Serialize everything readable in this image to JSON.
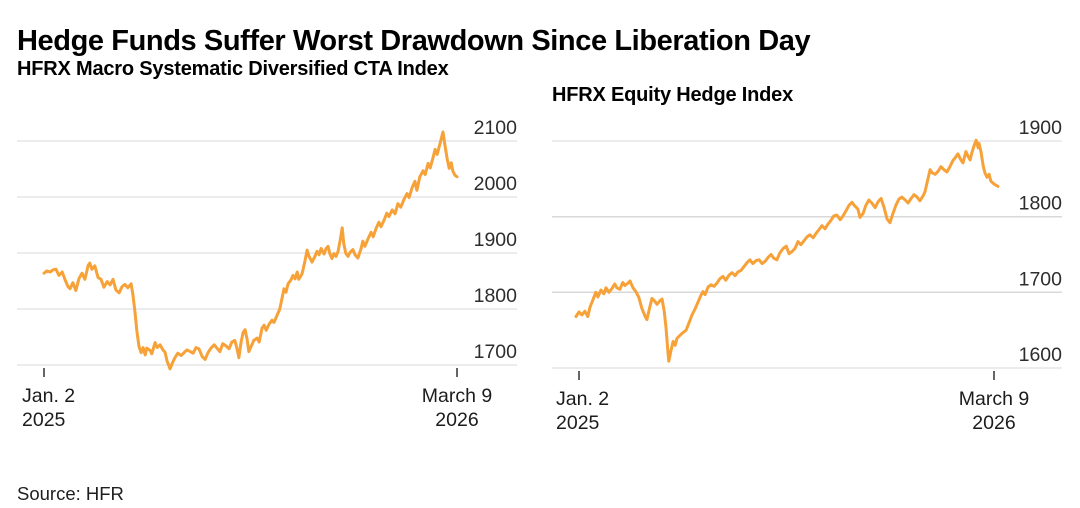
{
  "header": {
    "title": "Hedge Funds Suffer Worst Drawdown Since Liberation Day"
  },
  "source": {
    "label": "Source: HFR"
  },
  "colors": {
    "line": "#F7A139",
    "grid": "#D8D8D8",
    "tick": "#333333",
    "y_label": "#2D2D2D",
    "x_label": "#1C1C1C",
    "background": "#FFFFFF"
  },
  "chart_data": [
    {
      "id": "cta",
      "type": "line",
      "title": "HFRX Macro Systematic Diversified CTA Index",
      "legend": "none",
      "grid": "horizontal",
      "ylim": [
        1650,
        2150
      ],
      "y_gridlines": [
        2100,
        2000,
        1900,
        1800,
        1700
      ],
      "x_ticks": [
        {
          "line1": "Jan. 2",
          "line2": "2025",
          "align": "start"
        },
        {
          "line1": "March 9",
          "line2": "2026",
          "align": "middle"
        }
      ],
      "points": [
        [
          0.0,
          1864
        ],
        [
          0.007,
          1868
        ],
        [
          0.015,
          1866
        ],
        [
          0.022,
          1870
        ],
        [
          0.029,
          1871
        ],
        [
          0.036,
          1860
        ],
        [
          0.044,
          1866
        ],
        [
          0.051,
          1852
        ],
        [
          0.058,
          1840
        ],
        [
          0.063,
          1836
        ],
        [
          0.07,
          1847
        ],
        [
          0.077,
          1833
        ],
        [
          0.085,
          1855
        ],
        [
          0.092,
          1864
        ],
        [
          0.099,
          1853
        ],
        [
          0.107,
          1878
        ],
        [
          0.111,
          1882
        ],
        [
          0.116,
          1871
        ],
        [
          0.123,
          1877
        ],
        [
          0.131,
          1856
        ],
        [
          0.138,
          1853
        ],
        [
          0.145,
          1839
        ],
        [
          0.153,
          1849
        ],
        [
          0.16,
          1843
        ],
        [
          0.167,
          1853
        ],
        [
          0.174,
          1834
        ],
        [
          0.182,
          1829
        ],
        [
          0.189,
          1840
        ],
        [
          0.196,
          1844
        ],
        [
          0.203,
          1838
        ],
        [
          0.211,
          1845
        ],
        [
          0.215,
          1827
        ],
        [
          0.22,
          1796
        ],
        [
          0.225,
          1760
        ],
        [
          0.23,
          1733
        ],
        [
          0.235,
          1722
        ],
        [
          0.24,
          1731
        ],
        [
          0.245,
          1718
        ],
        [
          0.249,
          1730
        ],
        [
          0.257,
          1726
        ],
        [
          0.261,
          1720
        ],
        [
          0.269,
          1740
        ],
        [
          0.274,
          1731
        ],
        [
          0.281,
          1736
        ],
        [
          0.288,
          1727
        ],
        [
          0.293,
          1723
        ],
        [
          0.298,
          1707
        ],
        [
          0.305,
          1693
        ],
        [
          0.31,
          1702
        ],
        [
          0.317,
          1713
        ],
        [
          0.324,
          1721
        ],
        [
          0.332,
          1717
        ],
        [
          0.339,
          1722
        ],
        [
          0.346,
          1727
        ],
        [
          0.354,
          1724
        ],
        [
          0.361,
          1721
        ],
        [
          0.368,
          1731
        ],
        [
          0.375,
          1729
        ],
        [
          0.383,
          1715
        ],
        [
          0.39,
          1710
        ],
        [
          0.397,
          1722
        ],
        [
          0.404,
          1730
        ],
        [
          0.412,
          1736
        ],
        [
          0.419,
          1730
        ],
        [
          0.426,
          1724
        ],
        [
          0.433,
          1738
        ],
        [
          0.441,
          1734
        ],
        [
          0.448,
          1729
        ],
        [
          0.455,
          1741
        ],
        [
          0.462,
          1744
        ],
        [
          0.467,
          1730
        ],
        [
          0.472,
          1713
        ],
        [
          0.477,
          1740
        ],
        [
          0.482,
          1758
        ],
        [
          0.487,
          1763
        ],
        [
          0.492,
          1745
        ],
        [
          0.496,
          1724
        ],
        [
          0.501,
          1732
        ],
        [
          0.508,
          1744
        ],
        [
          0.516,
          1748
        ],
        [
          0.521,
          1741
        ],
        [
          0.528,
          1766
        ],
        [
          0.533,
          1771
        ],
        [
          0.538,
          1762
        ],
        [
          0.545,
          1773
        ],
        [
          0.552,
          1780
        ],
        [
          0.557,
          1776
        ],
        [
          0.564,
          1788
        ],
        [
          0.571,
          1800
        ],
        [
          0.576,
          1818
        ],
        [
          0.581,
          1836
        ],
        [
          0.586,
          1830
        ],
        [
          0.591,
          1845
        ],
        [
          0.598,
          1852
        ],
        [
          0.603,
          1860
        ],
        [
          0.608,
          1854
        ],
        [
          0.613,
          1866
        ],
        [
          0.617,
          1853
        ],
        [
          0.625,
          1863
        ],
        [
          0.632,
          1886
        ],
        [
          0.637,
          1905
        ],
        [
          0.642,
          1894
        ],
        [
          0.649,
          1884
        ],
        [
          0.656,
          1894
        ],
        [
          0.661,
          1903
        ],
        [
          0.666,
          1897
        ],
        [
          0.671,
          1908
        ],
        [
          0.678,
          1898
        ],
        [
          0.683,
          1908
        ],
        [
          0.688,
          1912
        ],
        [
          0.692,
          1899
        ],
        [
          0.697,
          1890
        ],
        [
          0.702,
          1899
        ],
        [
          0.707,
          1894
        ],
        [
          0.712,
          1903
        ],
        [
          0.717,
          1922
        ],
        [
          0.722,
          1945
        ],
        [
          0.726,
          1916
        ],
        [
          0.731,
          1899
        ],
        [
          0.736,
          1894
        ],
        [
          0.741,
          1901
        ],
        [
          0.748,
          1906
        ],
        [
          0.753,
          1897
        ],
        [
          0.76,
          1891
        ],
        [
          0.767,
          1906
        ],
        [
          0.772,
          1921
        ],
        [
          0.777,
          1912
        ],
        [
          0.785,
          1926
        ],
        [
          0.792,
          1937
        ],
        [
          0.797,
          1929
        ],
        [
          0.804,
          1944
        ],
        [
          0.811,
          1955
        ],
        [
          0.816,
          1947
        ],
        [
          0.823,
          1958
        ],
        [
          0.83,
          1971
        ],
        [
          0.835,
          1965
        ],
        [
          0.843,
          1977
        ],
        [
          0.85,
          1970
        ],
        [
          0.857,
          1988
        ],
        [
          0.864,
          1982
        ],
        [
          0.872,
          1996
        ],
        [
          0.879,
          2006
        ],
        [
          0.884,
          1999
        ],
        [
          0.891,
          2016
        ],
        [
          0.898,
          2028
        ],
        [
          0.903,
          2012
        ],
        [
          0.91,
          2036
        ],
        [
          0.918,
          2047
        ],
        [
          0.923,
          2040
        ],
        [
          0.93,
          2060
        ],
        [
          0.935,
          2052
        ],
        [
          0.942,
          2070
        ],
        [
          0.947,
          2085
        ],
        [
          0.952,
          2076
        ],
        [
          0.959,
          2096
        ],
        [
          0.966,
          2116
        ],
        [
          0.971,
          2092
        ],
        [
          0.976,
          2069
        ],
        [
          0.981,
          2051
        ],
        [
          0.986,
          2061
        ],
        [
          0.99,
          2046
        ],
        [
          0.995,
          2039
        ],
        [
          1.0,
          2036
        ]
      ]
    },
    {
      "id": "equity",
      "type": "line",
      "title": "HFRX Equity Hedge Index",
      "legend": "none",
      "grid": "horizontal",
      "ylim": [
        1580,
        1920
      ],
      "y_gridlines": [
        1900,
        1800,
        1700,
        1600
      ],
      "x_ticks": [
        {
          "line1": "Jan. 2",
          "line2": "2025",
          "align": "start"
        },
        {
          "line1": "March 9",
          "line2": "2026",
          "align": "middle"
        }
      ],
      "points": [
        [
          0.0,
          1668
        ],
        [
          0.007,
          1674
        ],
        [
          0.014,
          1670
        ],
        [
          0.021,
          1675
        ],
        [
          0.028,
          1668
        ],
        [
          0.033,
          1680
        ],
        [
          0.04,
          1690
        ],
        [
          0.047,
          1700
        ],
        [
          0.052,
          1694
        ],
        [
          0.059,
          1703
        ],
        [
          0.066,
          1698
        ],
        [
          0.071,
          1706
        ],
        [
          0.078,
          1700
        ],
        [
          0.085,
          1705
        ],
        [
          0.092,
          1711
        ],
        [
          0.097,
          1706
        ],
        [
          0.104,
          1704
        ],
        [
          0.111,
          1713
        ],
        [
          0.116,
          1709
        ],
        [
          0.123,
          1712
        ],
        [
          0.128,
          1715
        ],
        [
          0.135,
          1706
        ],
        [
          0.142,
          1701
        ],
        [
          0.149,
          1693
        ],
        [
          0.156,
          1679
        ],
        [
          0.164,
          1668
        ],
        [
          0.168,
          1664
        ],
        [
          0.175,
          1681
        ],
        [
          0.18,
          1692
        ],
        [
          0.187,
          1688
        ],
        [
          0.192,
          1684
        ],
        [
          0.199,
          1689
        ],
        [
          0.204,
          1691
        ],
        [
          0.209,
          1675
        ],
        [
          0.213,
          1655
        ],
        [
          0.218,
          1620
        ],
        [
          0.22,
          1609
        ],
        [
          0.225,
          1623
        ],
        [
          0.23,
          1635
        ],
        [
          0.235,
          1630
        ],
        [
          0.239,
          1639
        ],
        [
          0.246,
          1643
        ],
        [
          0.254,
          1647
        ],
        [
          0.261,
          1650
        ],
        [
          0.268,
          1660
        ],
        [
          0.275,
          1670
        ],
        [
          0.282,
          1678
        ],
        [
          0.289,
          1687
        ],
        [
          0.296,
          1696
        ],
        [
          0.301,
          1701
        ],
        [
          0.306,
          1697
        ],
        [
          0.313,
          1707
        ],
        [
          0.32,
          1710
        ],
        [
          0.327,
          1708
        ],
        [
          0.334,
          1712
        ],
        [
          0.341,
          1718
        ],
        [
          0.348,
          1721
        ],
        [
          0.355,
          1716
        ],
        [
          0.363,
          1723
        ],
        [
          0.37,
          1726
        ],
        [
          0.377,
          1722
        ],
        [
          0.384,
          1727
        ],
        [
          0.391,
          1729
        ],
        [
          0.398,
          1734
        ],
        [
          0.405,
          1739
        ],
        [
          0.412,
          1743
        ],
        [
          0.419,
          1738
        ],
        [
          0.427,
          1742
        ],
        [
          0.434,
          1743
        ],
        [
          0.441,
          1738
        ],
        [
          0.448,
          1741
        ],
        [
          0.455,
          1746
        ],
        [
          0.462,
          1750
        ],
        [
          0.469,
          1745
        ],
        [
          0.476,
          1743
        ],
        [
          0.483,
          1752
        ],
        [
          0.491,
          1758
        ],
        [
          0.498,
          1761
        ],
        [
          0.505,
          1751
        ],
        [
          0.512,
          1754
        ],
        [
          0.519,
          1758
        ],
        [
          0.526,
          1767
        ],
        [
          0.533,
          1763
        ],
        [
          0.54,
          1768
        ],
        [
          0.547,
          1773
        ],
        [
          0.554,
          1776
        ],
        [
          0.562,
          1772
        ],
        [
          0.569,
          1778
        ],
        [
          0.576,
          1783
        ],
        [
          0.583,
          1788
        ],
        [
          0.59,
          1784
        ],
        [
          0.597,
          1790
        ],
        [
          0.604,
          1795
        ],
        [
          0.611,
          1801
        ],
        [
          0.618,
          1802
        ],
        [
          0.626,
          1796
        ],
        [
          0.633,
          1801
        ],
        [
          0.64,
          1808
        ],
        [
          0.647,
          1815
        ],
        [
          0.654,
          1819
        ],
        [
          0.661,
          1814
        ],
        [
          0.668,
          1810
        ],
        [
          0.673,
          1799
        ],
        [
          0.68,
          1804
        ],
        [
          0.687,
          1815
        ],
        [
          0.694,
          1822
        ],
        [
          0.701,
          1818
        ],
        [
          0.709,
          1812
        ],
        [
          0.716,
          1820
        ],
        [
          0.723,
          1824
        ],
        [
          0.73,
          1812
        ],
        [
          0.737,
          1797
        ],
        [
          0.744,
          1792
        ],
        [
          0.751,
          1804
        ],
        [
          0.758,
          1815
        ],
        [
          0.765,
          1823
        ],
        [
          0.772,
          1826
        ],
        [
          0.78,
          1822
        ],
        [
          0.787,
          1818
        ],
        [
          0.794,
          1824
        ],
        [
          0.801,
          1829
        ],
        [
          0.808,
          1826
        ],
        [
          0.815,
          1821
        ],
        [
          0.822,
          1827
        ],
        [
          0.827,
          1833
        ],
        [
          0.832,
          1845
        ],
        [
          0.839,
          1862
        ],
        [
          0.844,
          1858
        ],
        [
          0.851,
          1856
        ],
        [
          0.858,
          1860
        ],
        [
          0.865,
          1866
        ],
        [
          0.872,
          1862
        ],
        [
          0.879,
          1859
        ],
        [
          0.886,
          1866
        ],
        [
          0.893,
          1874
        ],
        [
          0.9,
          1879
        ],
        [
          0.905,
          1883
        ],
        [
          0.912,
          1875
        ],
        [
          0.917,
          1871
        ],
        [
          0.924,
          1886
        ],
        [
          0.929,
          1880
        ],
        [
          0.934,
          1875
        ],
        [
          0.938,
          1884
        ],
        [
          0.943,
          1893
        ],
        [
          0.948,
          1901
        ],
        [
          0.953,
          1891
        ],
        [
          0.955,
          1897
        ],
        [
          0.96,
          1885
        ],
        [
          0.965,
          1867
        ],
        [
          0.969,
          1858
        ],
        [
          0.974,
          1852
        ],
        [
          0.979,
          1856
        ],
        [
          0.983,
          1847
        ],
        [
          0.991,
          1843
        ],
        [
          1.0,
          1840
        ]
      ]
    }
  ]
}
